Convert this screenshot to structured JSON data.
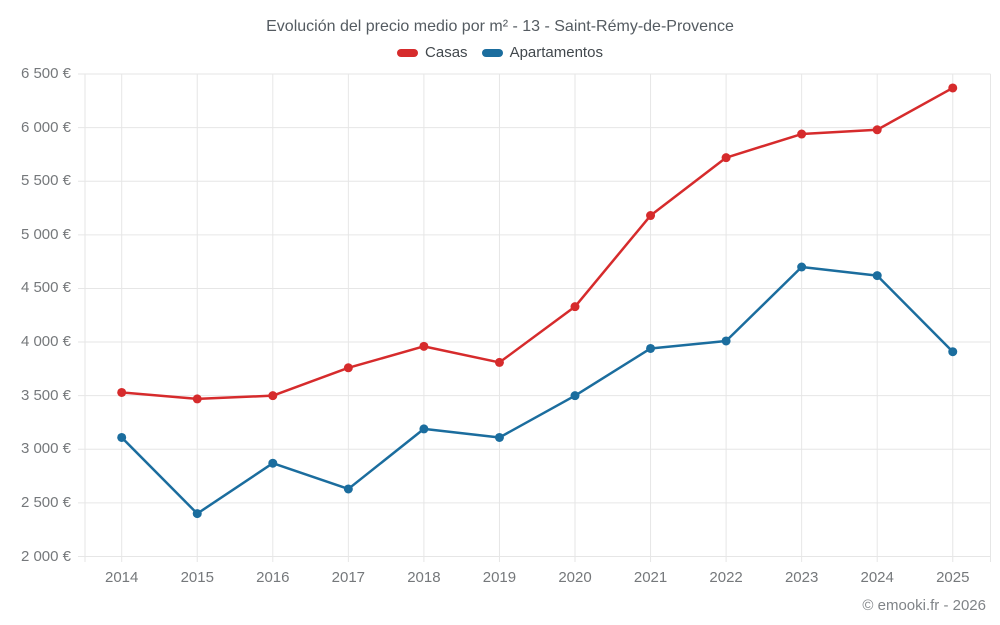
{
  "chart_data": {
    "type": "line",
    "title": "Evolución del precio medio por m² - 13 - Saint-Rémy-de-Provence",
    "categories": [
      "2014",
      "2015",
      "2016",
      "2017",
      "2018",
      "2019",
      "2020",
      "2021",
      "2022",
      "2023",
      "2024",
      "2025"
    ],
    "series": [
      {
        "name": "Casas",
        "color": "#d62b2c",
        "values": [
          3530,
          3470,
          3500,
          3760,
          3960,
          3810,
          4330,
          5180,
          5720,
          5940,
          5980,
          6370
        ]
      },
      {
        "name": "Apartamentos",
        "color": "#1b6d9e",
        "values": [
          3110,
          2400,
          2870,
          2630,
          3190,
          3110,
          3500,
          3940,
          4010,
          4700,
          4620,
          3910
        ]
      }
    ],
    "ylim": [
      2000,
      6500
    ],
    "ytick_step": 500,
    "ytick_labels": [
      "2 000 €",
      "2 500 €",
      "3 000 €",
      "3 500 €",
      "4 000 €",
      "4 500 €",
      "5 000 €",
      "5 500 €",
      "6 000 €",
      "6 500 €"
    ],
    "y_suffix": " €",
    "grid": true,
    "legend_position": "top",
    "background": "#ffffff",
    "copyright": "© emooki.fr - 2026"
  }
}
